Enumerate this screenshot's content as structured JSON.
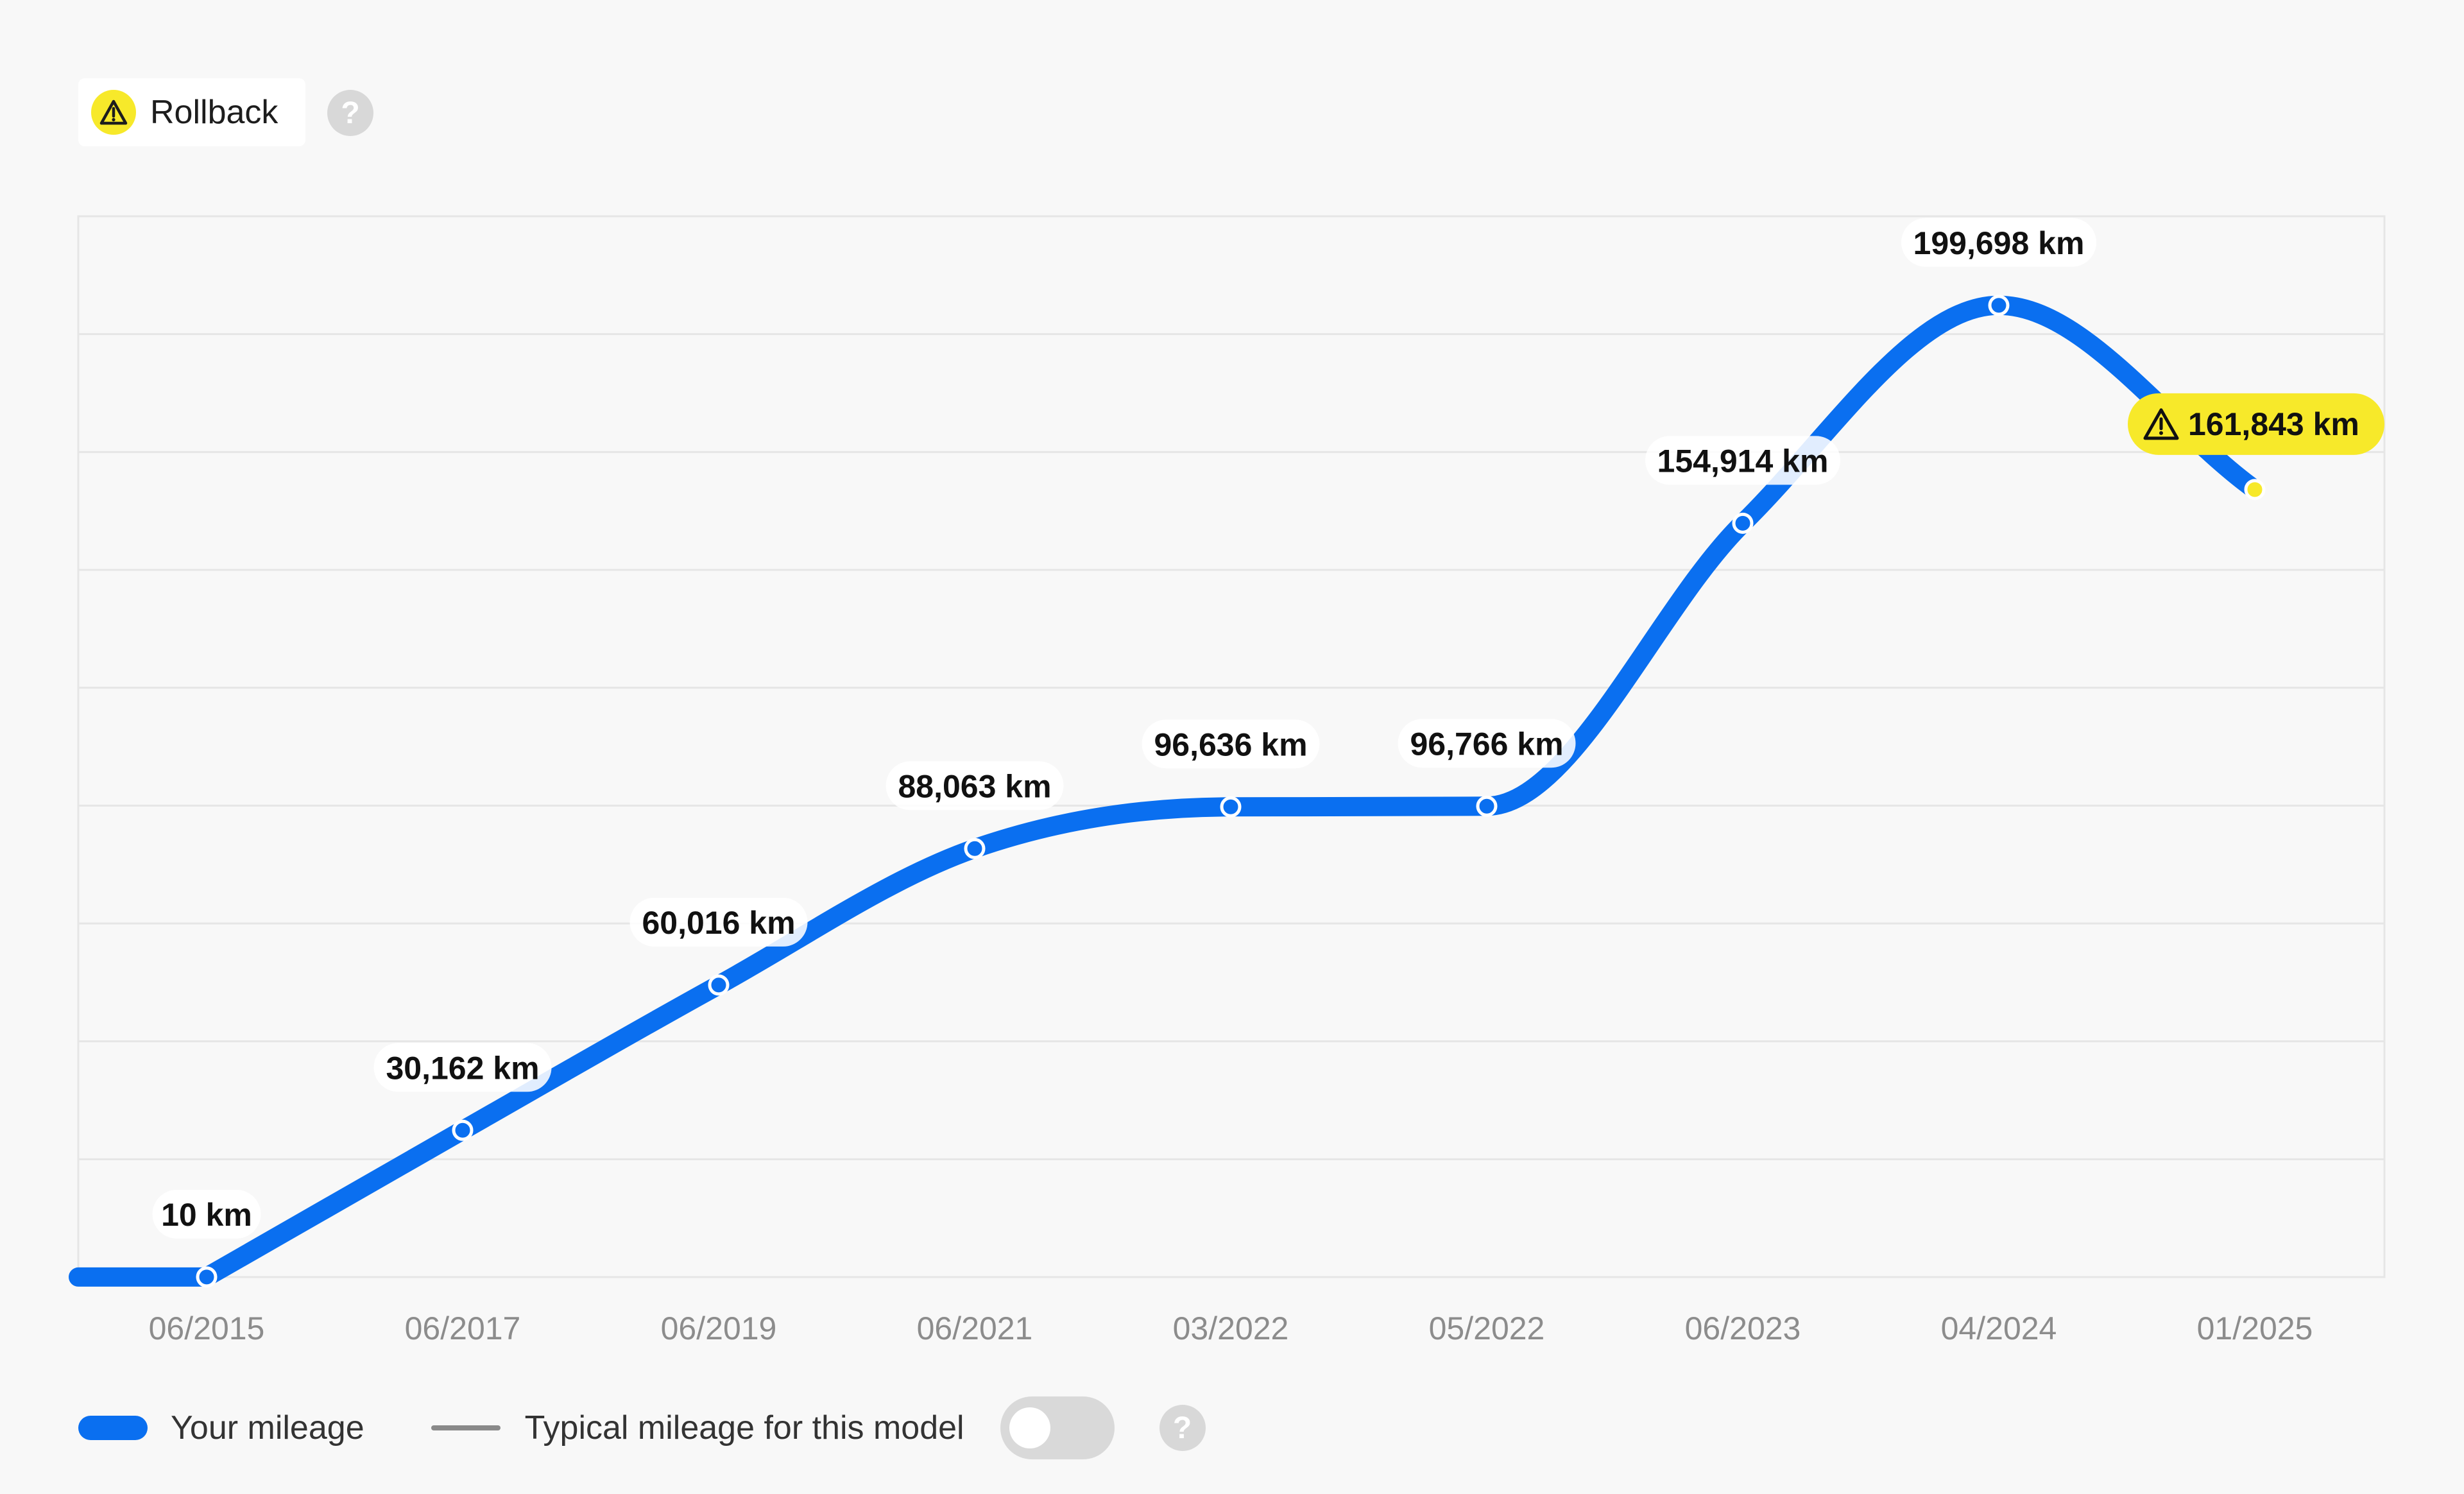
{
  "warning_badge": {
    "label": "Rollback",
    "icon": "warning-triangle-icon",
    "color": "#f7e92a"
  },
  "legend": {
    "your_mileage_label": "Your mileage",
    "typical_mileage_label": "Typical mileage for this model",
    "typical_toggle_on": false
  },
  "colors": {
    "accent": "#0a6ff0",
    "warning": "#f7e92a",
    "grid": "#e6e6e6"
  },
  "chart_data": {
    "type": "line",
    "categories": [
      "06/2015",
      "06/2017",
      "06/2019",
      "06/2021",
      "03/2022",
      "05/2022",
      "06/2023",
      "04/2024",
      "01/2025"
    ],
    "series": [
      {
        "name": "Your mileage",
        "values": [
          10,
          30162,
          60016,
          88063,
          96636,
          96766,
          154914,
          199698,
          161843
        ],
        "labels": [
          "10 km",
          "30,162 km",
          "60,016 km",
          "88,063 km",
          "96,636 km",
          "96,766 km",
          "154,914 km",
          "199,698 km",
          "161,843 km"
        ],
        "flagged": [
          false,
          false,
          false,
          false,
          false,
          false,
          false,
          false,
          true
        ]
      }
    ],
    "ylim": [
      0,
      218000
    ],
    "grid": "horizontal",
    "legend_position": "bottom-left"
  }
}
